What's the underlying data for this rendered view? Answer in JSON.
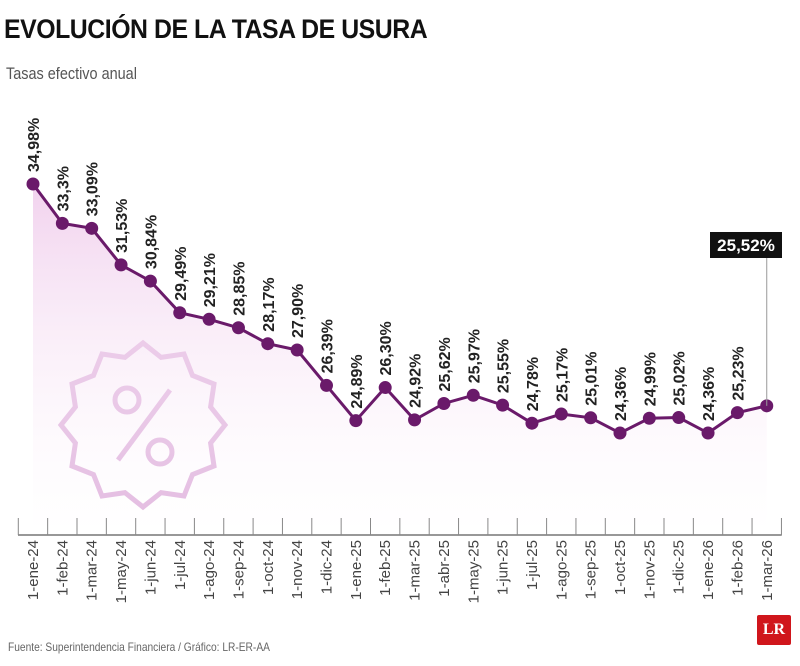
{
  "title": "EVOLUCIÓN DE LA TASA DE USURA",
  "subtitle": "Tasas efectivo anual",
  "source": "Fuente: Superintendencia Financiera / Gráfico: LR-ER-AA",
  "logo": "LR",
  "colors": {
    "line": "#6a1a6a",
    "fill": "#f3d9f0",
    "icon": "#d9a6d6",
    "highlight_bg": "#111111"
  },
  "chart_data": {
    "type": "area",
    "title": "EVOLUCIÓN DE LA TASA DE USURA",
    "ylabel": "Tasas efectivo anual",
    "categories": [
      "1-ene-24",
      "1-feb-24",
      "1-mar-24",
      "1-may-24",
      "1-jun-24",
      "1-jul-24",
      "1-ago-24",
      "1-sep-24",
      "1-oct-24",
      "1-nov-24",
      "1-dic-24",
      "1-ene-25",
      "1-feb-25",
      "1-mar-25",
      "1-abr-25",
      "1-may-25",
      "1-jun-25",
      "1-jul-25",
      "1-ago-25",
      "1-sep-25",
      "1-oct-25",
      "1-nov-25",
      "1-dic-25",
      "1-ene-26",
      "1-feb-26",
      "1-mar-26"
    ],
    "values": [
      34.98,
      33.3,
      33.09,
      31.53,
      30.84,
      29.49,
      29.21,
      28.85,
      28.17,
      27.9,
      26.39,
      24.89,
      26.3,
      24.92,
      25.62,
      25.97,
      25.55,
      24.78,
      25.17,
      25.01,
      24.36,
      24.99,
      25.02,
      24.36,
      25.23,
      25.52
    ],
    "labels": [
      "34,98%",
      "33,3%",
      "33,09%",
      "31,53%",
      "30,84%",
      "29,49%",
      "29,21%",
      "28,85%",
      "28,17%",
      "27,90%",
      "26,39%",
      "24,89%",
      "26,30%",
      "24,92%",
      "25,62%",
      "25,97%",
      "25,55%",
      "24,78%",
      "25,17%",
      "25,01%",
      "24,36%",
      "24,99%",
      "25,02%",
      "24,36%",
      "25,23%",
      "25,52%"
    ],
    "highlight_index": 25,
    "grid": false,
    "legend": "none"
  }
}
